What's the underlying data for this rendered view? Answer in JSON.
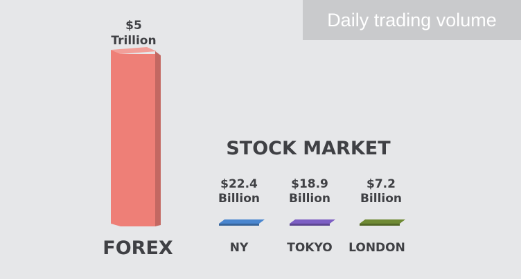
{
  "title": "Daily trading volume",
  "chart_data": {
    "type": "bar",
    "title": "Daily trading volume",
    "subtitle": "",
    "group_label": "STOCK MARKET",
    "categories": [
      "FOREX",
      "NY",
      "TOKYO",
      "LONDON"
    ],
    "values_billion_usd": [
      5000,
      22.4,
      18.9,
      7.2
    ],
    "data_labels": [
      [
        "$5",
        "Trillion"
      ],
      [
        "$22.4",
        "Billion"
      ],
      [
        "$18.9",
        "Billion"
      ],
      [
        "$7.2",
        "Billion"
      ]
    ],
    "colors": [
      "#ee7f77",
      "#4a86cf",
      "#7d5fc4",
      "#6f8a34"
    ],
    "grid": false,
    "legend": "none"
  }
}
